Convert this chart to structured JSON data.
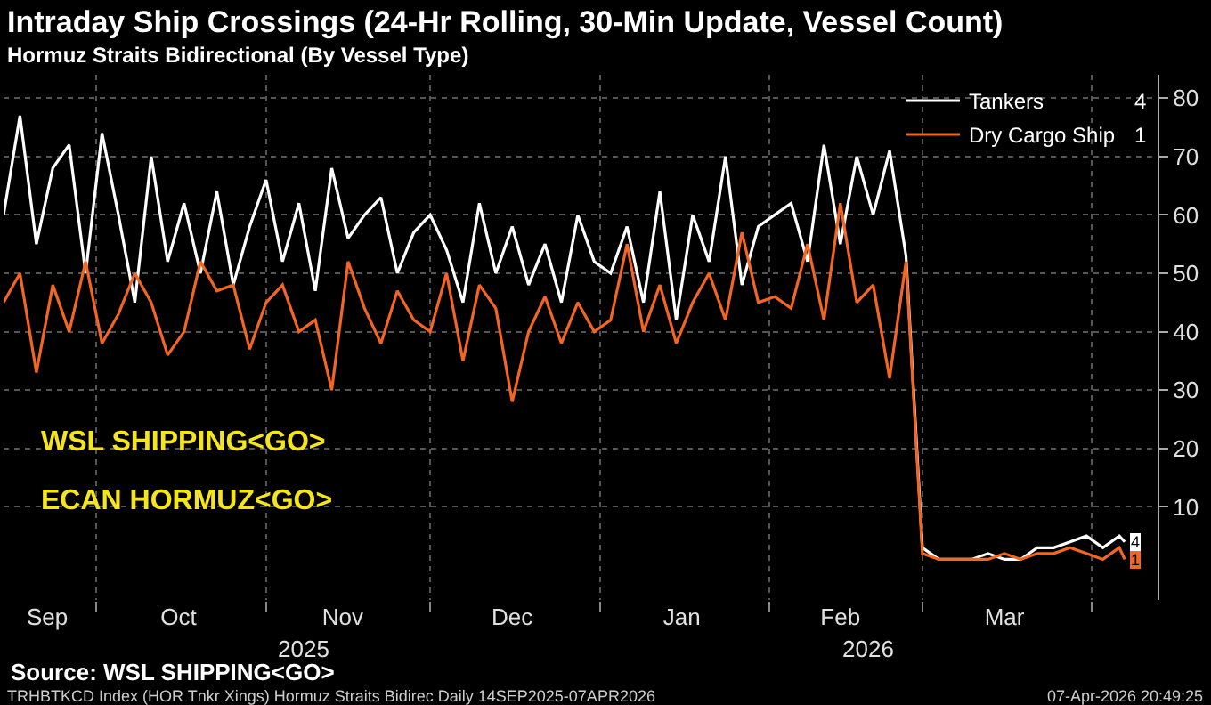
{
  "chart_data": {
    "type": "line",
    "title": "Intraday Ship Crossings (24-Hr Rolling, 30-Min Update, Vessel Count)",
    "subtitle": "Hormuz Straits Bidirectional (By Vessel Type)",
    "x": [
      "2025-09-14",
      "2025-09-17",
      "2025-09-20",
      "2025-09-23",
      "2025-09-26",
      "2025-09-29",
      "2025-10-02",
      "2025-10-05",
      "2025-10-08",
      "2025-10-11",
      "2025-10-14",
      "2025-10-17",
      "2025-10-20",
      "2025-10-23",
      "2025-10-26",
      "2025-10-29",
      "2025-11-01",
      "2025-11-04",
      "2025-11-07",
      "2025-11-10",
      "2025-11-13",
      "2025-11-16",
      "2025-11-19",
      "2025-11-22",
      "2025-11-25",
      "2025-11-28",
      "2025-12-01",
      "2025-12-04",
      "2025-12-07",
      "2025-12-10",
      "2025-12-13",
      "2025-12-16",
      "2025-12-19",
      "2025-12-22",
      "2025-12-25",
      "2025-12-28",
      "2025-12-31",
      "2026-01-03",
      "2026-01-06",
      "2026-01-09",
      "2026-01-12",
      "2026-01-15",
      "2026-01-18",
      "2026-01-21",
      "2026-01-24",
      "2026-01-27",
      "2026-01-30",
      "2026-02-02",
      "2026-02-05",
      "2026-02-08",
      "2026-02-11",
      "2026-02-14",
      "2026-02-17",
      "2026-02-20",
      "2026-02-23",
      "2026-02-26",
      "2026-03-01",
      "2026-03-04",
      "2026-03-07",
      "2026-03-10",
      "2026-03-13",
      "2026-03-16",
      "2026-03-19",
      "2026-03-22",
      "2026-03-25",
      "2026-03-28",
      "2026-03-31",
      "2026-04-03",
      "2026-04-06",
      "2026-04-07"
    ],
    "series": [
      {
        "name": "Tankers",
        "color": "#ffffff",
        "values": [
          60,
          77,
          55,
          68,
          72,
          50,
          74,
          60,
          45,
          70,
          52,
          62,
          50,
          64,
          48,
          58,
          66,
          52,
          62,
          47,
          68,
          56,
          60,
          63,
          50,
          57,
          60,
          54,
          45,
          62,
          50,
          58,
          48,
          55,
          45,
          60,
          52,
          50,
          58,
          45,
          64,
          42,
          60,
          52,
          70,
          48,
          58,
          60,
          62,
          52,
          72,
          55,
          70,
          60,
          71,
          53,
          3,
          1,
          1,
          1,
          2,
          1,
          1,
          3,
          3,
          4,
          5,
          3,
          5,
          4
        ],
        "value_labels": [
          null,
          null,
          null,
          null,
          null,
          null,
          null,
          null,
          null,
          null,
          null,
          null,
          null,
          null,
          null,
          null,
          null,
          null,
          null,
          null,
          null,
          null,
          null,
          null,
          null,
          null,
          null,
          null,
          null,
          null,
          null,
          null,
          null,
          null,
          null,
          null,
          null,
          null,
          null,
          null,
          null,
          null,
          null,
          null,
          null,
          null,
          null,
          null,
          null,
          null,
          null,
          null,
          null,
          null,
          null,
          null,
          null,
          null,
          null,
          null,
          null,
          null,
          null,
          null,
          null,
          null,
          null,
          null,
          null,
          "4"
        ]
      },
      {
        "name": "Dry Cargo Ship",
        "color": "#f26522",
        "values": [
          45,
          50,
          33,
          48,
          40,
          52,
          38,
          43,
          50,
          45,
          36,
          40,
          52,
          47,
          48,
          37,
          45,
          48,
          40,
          42,
          30,
          52,
          44,
          38,
          47,
          42,
          40,
          50,
          35,
          48,
          44,
          28,
          40,
          46,
          38,
          45,
          40,
          42,
          55,
          40,
          48,
          38,
          45,
          50,
          42,
          57,
          45,
          46,
          44,
          55,
          42,
          62,
          45,
          48,
          32,
          52,
          2,
          1,
          1,
          1,
          1,
          2,
          1,
          2,
          2,
          3,
          2,
          1,
          3,
          1
        ],
        "value_labels": [
          null,
          null,
          null,
          null,
          null,
          null,
          null,
          null,
          null,
          null,
          null,
          null,
          null,
          null,
          null,
          null,
          null,
          null,
          null,
          null,
          null,
          null,
          null,
          null,
          null,
          null,
          null,
          null,
          null,
          null,
          null,
          null,
          null,
          null,
          null,
          null,
          null,
          null,
          null,
          null,
          null,
          null,
          null,
          null,
          null,
          null,
          null,
          null,
          null,
          null,
          null,
          null,
          null,
          null,
          null,
          null,
          null,
          null,
          null,
          null,
          null,
          null,
          null,
          null,
          null,
          null,
          null,
          null,
          null,
          "1"
        ]
      }
    ],
    "xlim": [
      "2025-09-14",
      "2026-04-13"
    ],
    "xticks": [
      {
        "value": "2025-09-22",
        "label": "Sep"
      },
      {
        "value": "2025-10-16",
        "label": "Oct"
      },
      {
        "value": "2025-11-15",
        "label": "Nov"
      },
      {
        "value": "2025-12-16",
        "label": "Dec"
      },
      {
        "value": "2026-01-16",
        "label": "Jan"
      },
      {
        "value": "2026-02-14",
        "label": "Feb"
      },
      {
        "value": "2026-03-16",
        "label": "Mar"
      },
      {
        "value": "2025-10-01",
        "label": null
      },
      {
        "value": "2025-11-01",
        "label": null
      },
      {
        "value": "2025-12-01",
        "label": null
      },
      {
        "value": "2026-01-01",
        "label": null
      },
      {
        "value": "2026-02-01",
        "label": null
      },
      {
        "value": "2026-03-01",
        "label": null
      },
      {
        "value": "2026-04-01",
        "label": null
      }
    ],
    "x2lim": [
      "2025-09-14",
      "2026-04-13"
    ],
    "x2ticks": [
      {
        "value": "2025-11-08",
        "label": "2025"
      },
      {
        "value": "2026-02-19",
        "label": "2026"
      }
    ],
    "ylim": [
      -6,
      84
    ],
    "yticks": [
      10,
      20,
      30,
      40,
      50,
      60,
      70,
      80
    ],
    "grid": true,
    "legend": "top right",
    "annotations": [
      "WSL SHIPPING<GO>",
      "ECAN HORMUZ<GO>",
      "Source: WSL SHIPPING<GO>",
      "TRHBTKCD Index (HOR Tnkr Xings) Hormuz Straits Bidirec Daily 14SEP2025-07APR2026",
      "07-Apr-2026 20:49:25"
    ]
  }
}
